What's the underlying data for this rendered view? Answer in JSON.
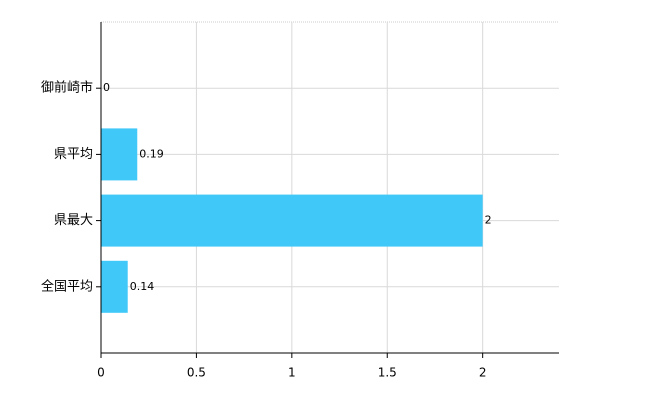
{
  "chart_data": {
    "type": "bar",
    "orientation": "horizontal",
    "categories": [
      "御前崎市",
      "県平均",
      "県最大",
      "全国平均"
    ],
    "values": [
      0,
      0.19,
      2,
      0.14
    ],
    "color": "#40c8f8",
    "xlim": [
      0,
      2.4
    ],
    "xticks": [
      0,
      0.5,
      1,
      1.5,
      2
    ],
    "grid": true
  }
}
